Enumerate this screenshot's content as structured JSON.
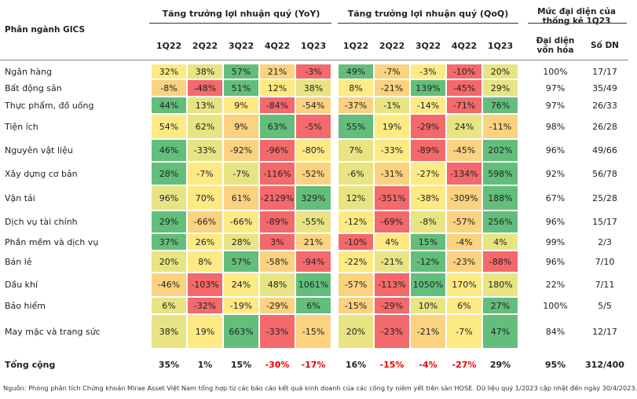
{
  "header": {
    "sector_label": "Phân ngành GICS",
    "title_yoy": "Tăng trưởng lợi nhuận quý (YoY)",
    "title_qoq": "Tăng trưởng lợi nhuận quý (QoQ)",
    "title_rep": "Mức đại diện của thống kê 1Q23",
    "yoy_quarters": [
      "1Q22",
      "2Q22",
      "3Q22",
      "4Q22",
      "1Q23"
    ],
    "qoq_quarters": [
      "1Q22",
      "2Q22",
      "3Q22",
      "4Q22",
      "1Q23"
    ],
    "rep_cap": "Đại diện vốn hóa",
    "count": "Số DN"
  },
  "rows": [
    {
      "name": "Ngân hàng",
      "yoy": [
        "32%",
        "38%",
        "57%",
        "21%",
        "-3%"
      ],
      "qoq": [
        "49%",
        "-7%",
        "-3%",
        "-10%",
        "20%"
      ],
      "rep": "100%",
      "count": "17/17"
    },
    {
      "name": "Bất động sản",
      "yoy": [
        "-8%",
        "-48%",
        "51%",
        "12%",
        "38%"
      ],
      "qoq": [
        "8%",
        "-21%",
        "139%",
        "-45%",
        "29%"
      ],
      "rep": "97%",
      "count": "35/49"
    },
    {
      "name": "Thực phẩm, đồ uống",
      "yoy": [
        "44%",
        "13%",
        "9%",
        "-84%",
        "-54%"
      ],
      "qoq": [
        "-37%",
        "-1%",
        "-14%",
        "-71%",
        "76%"
      ],
      "rep": "97%",
      "count": "26/33"
    },
    {
      "name": "Tiện ích",
      "yoy": [
        "54%",
        "62%",
        "9%",
        "63%",
        "-5%"
      ],
      "qoq": [
        "55%",
        "19%",
        "-29%",
        "24%",
        "-11%"
      ],
      "rep": "98%",
      "count": "26/28"
    },
    {
      "name": "Nguyên vật liệu",
      "yoy": [
        "46%",
        "-33%",
        "-92%",
        "-96%",
        "-80%"
      ],
      "qoq": [
        "7%",
        "-33%",
        "-89%",
        "-45%",
        "202%"
      ],
      "rep": "96%",
      "count": "49/66"
    },
    {
      "name": "Xây dựng cơ bản",
      "yoy": [
        "28%",
        "-7%",
        "-7%",
        "-116%",
        "-52%"
      ],
      "qoq": [
        "-6%",
        "-31%",
        "-27%",
        "-134%",
        "598%"
      ],
      "rep": "92%",
      "count": "56/78"
    },
    {
      "name": "Vận tải",
      "yoy": [
        "96%",
        "70%",
        "61%",
        "-2129%",
        "329%"
      ],
      "qoq": [
        "12%",
        "-351%",
        "-38%",
        "-309%",
        "188%"
      ],
      "rep": "67%",
      "count": "25/28"
    },
    {
      "name": "Dịch vụ tài chính",
      "yoy": [
        "29%",
        "-66%",
        "-66%",
        "-89%",
        "-55%"
      ],
      "qoq": [
        "-12%",
        "-69%",
        "-8%",
        "-57%",
        "256%"
      ],
      "rep": "96%",
      "count": "15/17"
    },
    {
      "name": "Phần mềm và dịch vụ",
      "yoy": [
        "37%",
        "26%",
        "28%",
        "3%",
        "21%"
      ],
      "qoq": [
        "-10%",
        "4%",
        "15%",
        "-4%",
        "4%"
      ],
      "rep": "99%",
      "count": "2/3"
    },
    {
      "name": "Bán lẻ",
      "yoy": [
        "20%",
        "8%",
        "57%",
        "-58%",
        "-94%"
      ],
      "qoq": [
        "-22%",
        "-21%",
        "-12%",
        "-23%",
        "-88%"
      ],
      "rep": "96%",
      "count": "7/10"
    },
    {
      "name": "Dầu khí",
      "yoy": [
        "-46%",
        "-103%",
        "24%",
        "48%",
        "1061%"
      ],
      "qoq": [
        "-57%",
        "-113%",
        "1050%",
        "170%",
        "180%"
      ],
      "rep": "22%",
      "count": "7/11"
    },
    {
      "name": "Bảo hiểm",
      "yoy": [
        "6%",
        "-32%",
        "-19%",
        "-29%",
        "6%"
      ],
      "qoq": [
        "-15%",
        "-29%",
        "10%",
        "6%",
        "27%"
      ],
      "rep": "100%",
      "count": "5/5"
    },
    {
      "name": "May mặc và trang sức",
      "yoy": [
        "38%",
        "19%",
        "663%",
        "-33%",
        "-15%"
      ],
      "qoq": [
        "20%",
        "-23%",
        "-21%",
        "-7%",
        "47%"
      ],
      "rep": "84%",
      "count": "12/17"
    }
  ],
  "total": {
    "name": "Tổng cộng",
    "yoy": [
      "35%",
      "1%",
      "15%",
      "-30%",
      "-17%"
    ],
    "qoq": [
      "16%",
      "-15%",
      "-4%",
      "-27%",
      "29%"
    ],
    "rep": "95%",
    "count": "312/400"
  },
  "source": "Nguồn: Phòng phân tích Chứng khoán Mirae Asset Việt Nam tổng hợp từ các báo cáo kết quả kinh doanh của các công ty niêm yết trên sàn HOSE. Dữ liệu quý 1/2023 cập nhật đến ngày 30/4/2023."
}
